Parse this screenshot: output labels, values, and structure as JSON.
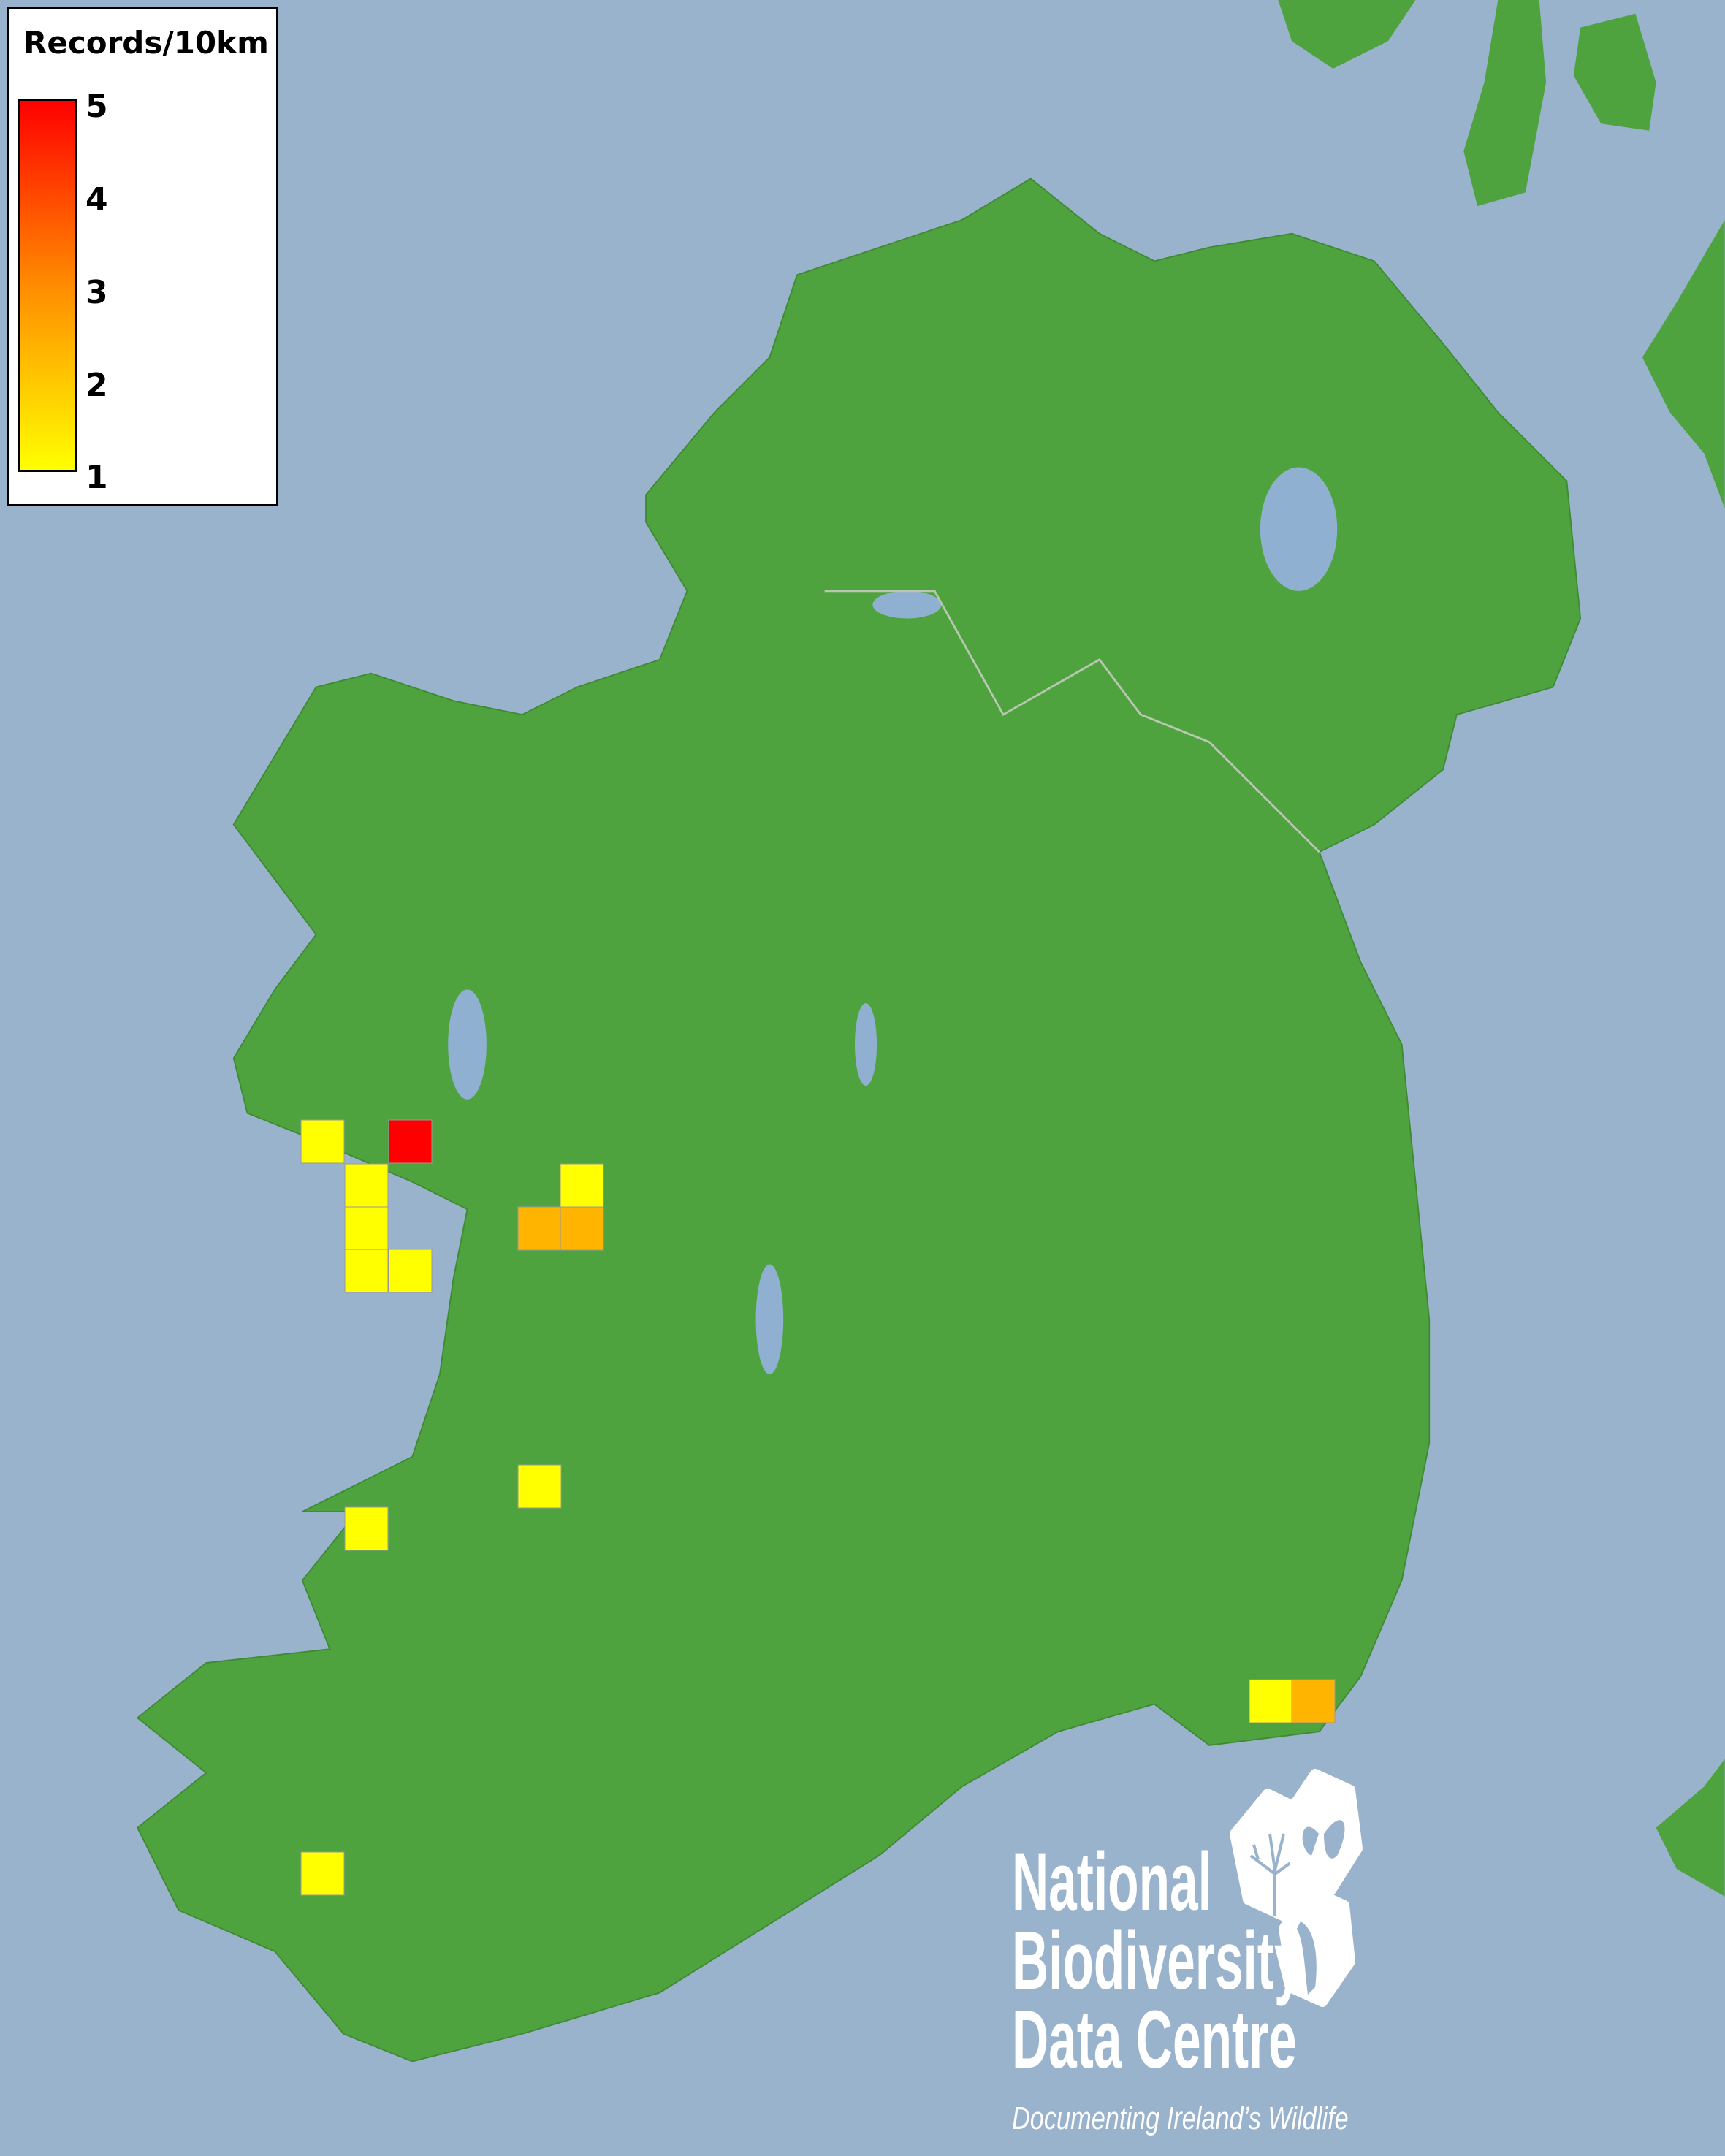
{
  "legend": {
    "title": "Records/10km",
    "ticks": [
      "5",
      "4",
      "3",
      "2",
      "1"
    ],
    "range": [
      1,
      5
    ],
    "colors": {
      "low": "#ffff00",
      "mid": "#ff8c00",
      "high": "#ff0000"
    }
  },
  "records": {
    "cell_values": [
      1,
      5,
      1,
      1,
      1,
      1,
      1,
      2,
      2,
      1,
      1,
      1,
      2,
      1
    ],
    "cell_colors": {
      "1": "#ffff00",
      "2": "#ffb400",
      "5": "#ff0000"
    }
  },
  "map_colors": {
    "sea": "#9ab3cc",
    "land": "#4fa33f",
    "lakes": "#8fb0d0"
  },
  "logo": {
    "line1": "National",
    "line2": "Biodiversity",
    "line3": "Data Centre",
    "tagline": "Documenting Ireland’s Wildlife",
    "icons": [
      "tree-icon",
      "butterfly-icon",
      "seahorse-icon"
    ]
  }
}
